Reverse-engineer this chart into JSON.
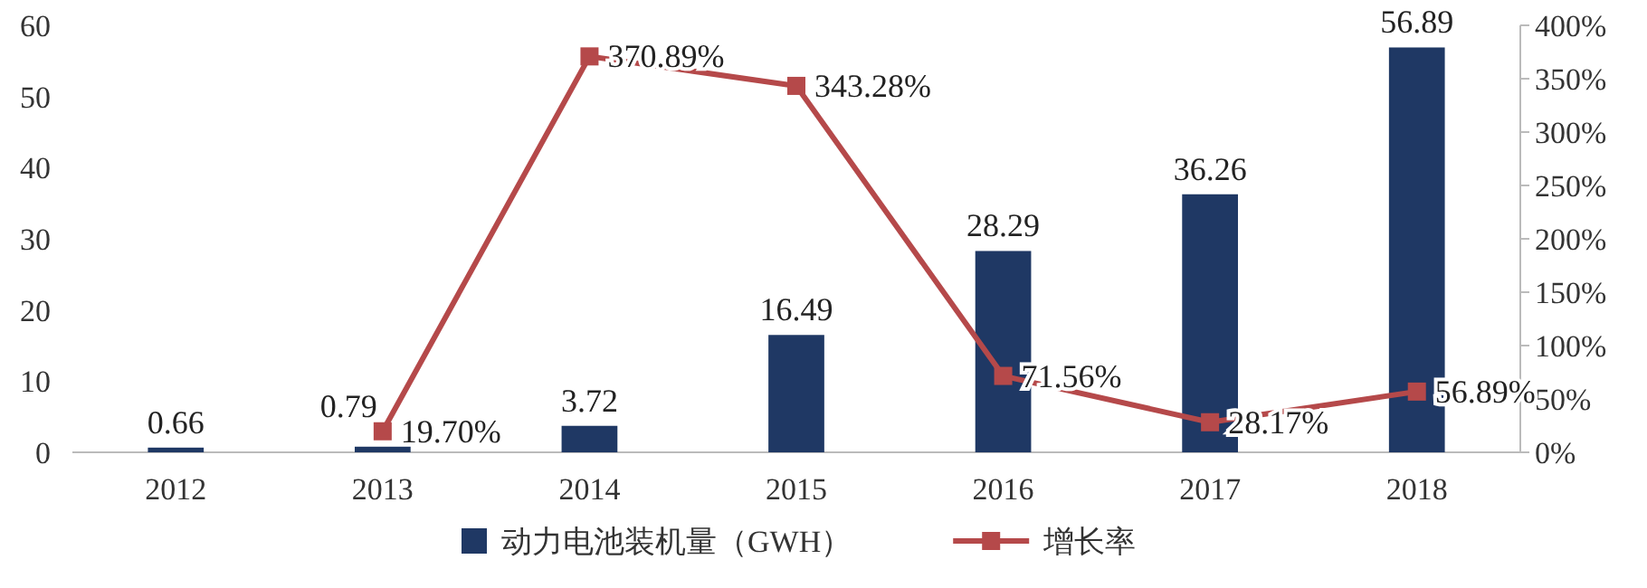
{
  "chart_data": {
    "type": "bar",
    "categories": [
      "2012",
      "2013",
      "2014",
      "2015",
      "2016",
      "2017",
      "2018"
    ],
    "series": [
      {
        "name": "动力电池装机量（GWH）",
        "color": "#1f3864",
        "values": [
          0.66,
          0.79,
          3.72,
          16.49,
          28.29,
          36.26,
          56.89
        ],
        "value_labels": [
          "0.66",
          "0.79",
          "3.72",
          "16.49",
          "28.29",
          "36.26",
          "56.89"
        ]
      },
      {
        "name": "增长率",
        "type": "line",
        "axis": "y2",
        "color": "#b5494a",
        "marker": "square",
        "values": [
          null,
          19.7,
          370.89,
          343.28,
          71.56,
          28.17,
          56.89
        ],
        "value_labels": [
          null,
          "19.70%",
          "370.89%",
          "343.28%",
          "71.56%",
          "28.17%",
          "56.89%"
        ]
      }
    ],
    "ylim": [
      0,
      60
    ],
    "yticks": [
      0,
      10,
      20,
      30,
      40,
      50,
      60
    ],
    "y2lim": [
      0,
      400
    ],
    "y2ticks": [
      {
        "value": 0,
        "label": "0%"
      },
      {
        "value": 50,
        "label": "50%"
      },
      {
        "value": 100,
        "label": "100%"
      },
      {
        "value": 150,
        "label": "150%"
      },
      {
        "value": 200,
        "label": "200%"
      },
      {
        "value": 250,
        "label": "250%"
      },
      {
        "value": 300,
        "label": "300%"
      },
      {
        "value": 350,
        "label": "350%"
      },
      {
        "value": 400,
        "label": "400%"
      }
    ],
    "grid": false,
    "legend": "bottom"
  }
}
